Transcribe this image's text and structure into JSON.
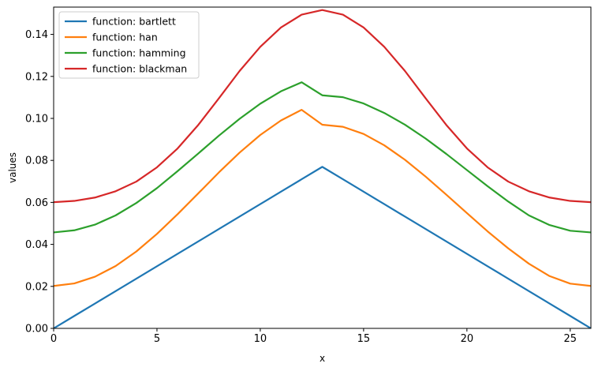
{
  "chart_data": {
    "type": "line",
    "title": "",
    "xlabel": "x",
    "ylabel": "values",
    "xlim": [
      0,
      26
    ],
    "ylim": [
      0,
      0.153
    ],
    "xticks": [
      0,
      5,
      10,
      15,
      20,
      25
    ],
    "xtick_labels": [
      "0",
      "5",
      "10",
      "15",
      "20",
      "25"
    ],
    "yticks": [
      0.0,
      0.02,
      0.04,
      0.06,
      0.08,
      0.1,
      0.12,
      0.14
    ],
    "ytick_labels": [
      "0.00",
      "0.02",
      "0.04",
      "0.06",
      "0.08",
      "0.10",
      "0.12",
      "0.14"
    ],
    "grid": false,
    "legend_position": "top-left",
    "x": [
      0,
      1,
      2,
      3,
      4,
      5,
      6,
      7,
      8,
      9,
      10,
      11,
      12,
      13,
      14,
      15,
      16,
      17,
      18,
      19,
      20,
      21,
      22,
      23,
      24,
      25,
      26
    ],
    "series": [
      {
        "name": "function: bartlett",
        "color": "#1f77b4",
        "values": [
          0.0,
          0.00592,
          0.01183,
          0.01775,
          0.02367,
          0.02959,
          0.0355,
          0.04142,
          0.04734,
          0.05325,
          0.05917,
          0.06509,
          0.07101,
          0.07692,
          0.07101,
          0.06509,
          0.05917,
          0.05325,
          0.04734,
          0.04142,
          0.0355,
          0.02959,
          0.02367,
          0.01775,
          0.01183,
          0.00592,
          0.0
        ]
      },
      {
        "name": "function: han",
        "color": "#ff7f0e",
        "values": [
          0.0202,
          0.0214,
          0.0246,
          0.0297,
          0.0366,
          0.045,
          0.0544,
          0.0643,
          0.0743,
          0.0837,
          0.0921,
          0.099,
          0.1041,
          0.097,
          0.096,
          0.0926,
          0.0872,
          0.0803,
          0.0723,
          0.0637,
          0.0549,
          0.0462,
          0.0381,
          0.0308,
          0.0249,
          0.0213,
          0.0202
        ]
      },
      {
        "name": "function: hamming",
        "color": "#2ca02c",
        "values": [
          0.0457,
          0.0467,
          0.0494,
          0.0538,
          0.0597,
          0.0668,
          0.0749,
          0.0833,
          0.0918,
          0.0998,
          0.107,
          0.1129,
          0.1172,
          0.111,
          0.1101,
          0.1071,
          0.1026,
          0.097,
          0.0904,
          0.0831,
          0.0754,
          0.0677,
          0.0604,
          0.0538,
          0.0492,
          0.0465,
          0.0457
        ]
      },
      {
        "name": "function: blackman",
        "color": "#d62728",
        "values": [
          0.0601,
          0.0607,
          0.0623,
          0.0653,
          0.0699,
          0.0767,
          0.0857,
          0.0969,
          0.1096,
          0.1226,
          0.1341,
          0.1433,
          0.1494,
          0.1516,
          0.1494,
          0.1433,
          0.1341,
          0.1226,
          0.1096,
          0.0969,
          0.0857,
          0.0767,
          0.0699,
          0.0653,
          0.0623,
          0.0607,
          0.0601
        ]
      }
    ]
  }
}
